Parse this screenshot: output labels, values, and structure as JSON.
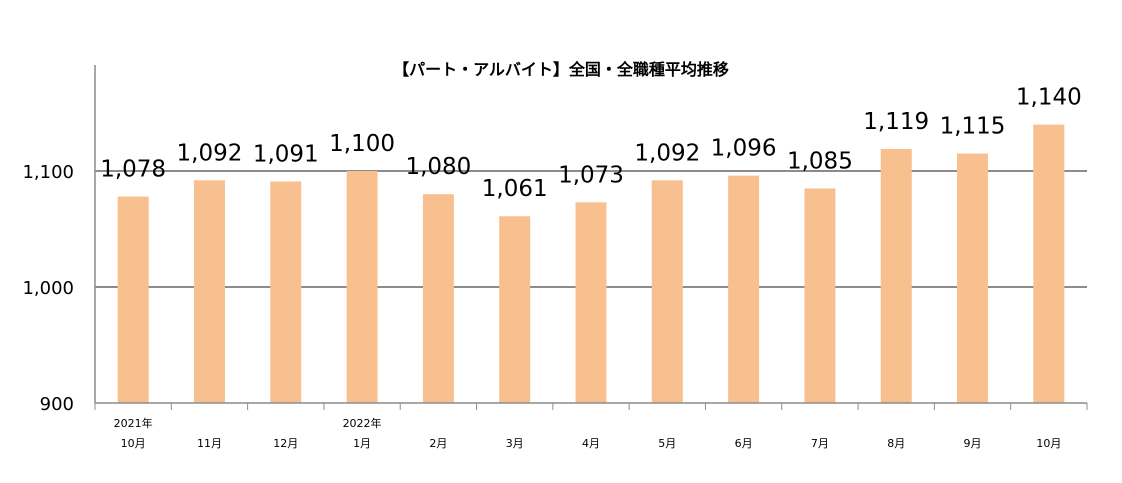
{
  "chart_data": {
    "type": "bar",
    "title": "【パート・アルバイト】全国・全職種平均推移",
    "categories": [
      [
        "2021年",
        "10月"
      ],
      [
        "",
        "11月"
      ],
      [
        "",
        "12月"
      ],
      [
        "2022年",
        "1月"
      ],
      [
        "",
        "2月"
      ],
      [
        "",
        "3月"
      ],
      [
        "",
        "4月"
      ],
      [
        "",
        "5月"
      ],
      [
        "",
        "6月"
      ],
      [
        "",
        "7月"
      ],
      [
        "",
        "8月"
      ],
      [
        "",
        "9月"
      ],
      [
        "",
        "10月"
      ]
    ],
    "values": [
      1078,
      1092,
      1091,
      1100,
      1080,
      1061,
      1073,
      1092,
      1096,
      1085,
      1119,
      1115,
      1140
    ],
    "data_labels": [
      "1,078",
      "1,092",
      "1,091",
      "1,100",
      "1,080",
      "1,061",
      "1,073",
      "1,092",
      "1,096",
      "1,085",
      "1,119",
      "1,115",
      "1,140"
    ],
    "ylim": [
      900,
      1170
    ],
    "yticks": [
      900,
      1000,
      1100
    ],
    "ytick_labels": [
      "900",
      "1,000",
      "1,100"
    ],
    "grid": true,
    "colors": {
      "bar": "#F9C08F",
      "grid": "#8C8C8C",
      "axis": "#8C8C8C"
    }
  }
}
